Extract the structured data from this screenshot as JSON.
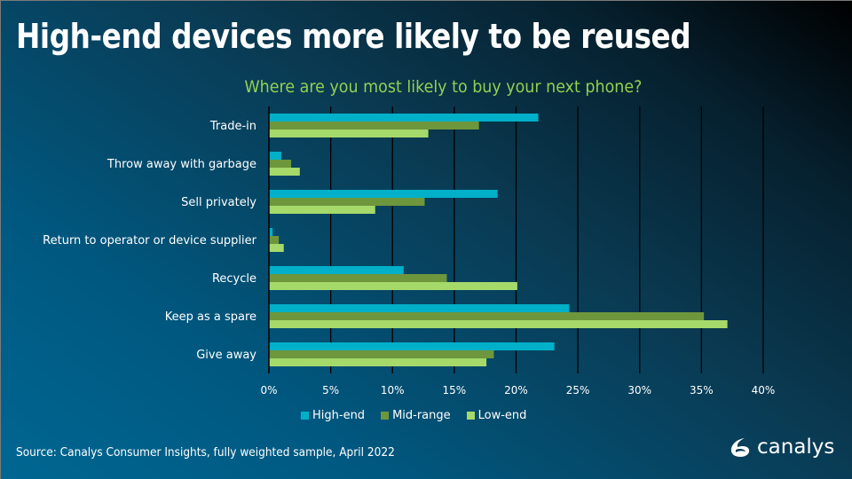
{
  "slide": {
    "title": "High-end devices more likely to be reused",
    "source": "Source:  Canalys Consumer Insights, fully weighted sample, April 2022",
    "logo_text": "canalys"
  },
  "colors": {
    "high_end": "#00b0c8",
    "mid_range": "#6e963c",
    "low_end": "#a5d96a",
    "subtitle": "#92d050"
  },
  "chart_data": {
    "type": "bar",
    "orientation": "horizontal",
    "title": "Where are you most likely to buy your next phone?",
    "xlabel": "",
    "ylabel": "",
    "xlim": [
      0,
      40
    ],
    "x_ticks": [
      "0%",
      "5%",
      "10%",
      "15%",
      "20%",
      "25%",
      "30%",
      "35%",
      "40%"
    ],
    "grid": "vertical",
    "legend_position": "bottom",
    "categories": [
      "Trade-in",
      "Throw away with garbage",
      "Sell privately",
      "Return to operator or device supplier",
      "Recycle",
      "Keep as a spare",
      "Give away"
    ],
    "series": [
      {
        "name": "High-end",
        "values": [
          21.8,
          1.0,
          18.5,
          0.3,
          10.9,
          24.3,
          23.1
        ]
      },
      {
        "name": "Mid-range",
        "values": [
          17.0,
          1.8,
          12.6,
          0.8,
          14.4,
          35.2,
          18.2
        ]
      },
      {
        "name": "Low-end",
        "values": [
          12.9,
          2.5,
          8.6,
          1.2,
          20.1,
          37.1,
          17.6
        ]
      }
    ]
  }
}
